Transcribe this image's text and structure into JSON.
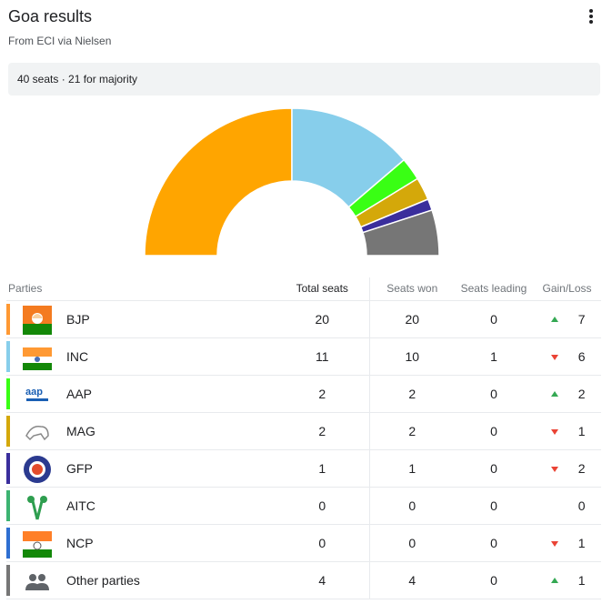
{
  "header": {
    "title": "Goa results",
    "subtitle": "From ECI via Nielsen"
  },
  "summary": "40 seats · 21 for majority",
  "chart_data": {
    "type": "pie",
    "categories": [
      "BJP",
      "INC",
      "AAP",
      "MAG",
      "GFP",
      "AITC",
      "NCP",
      "Other parties"
    ],
    "values": [
      20,
      11,
      2,
      2,
      1,
      0,
      0,
      4
    ],
    "total": 40,
    "colors": [
      "#ffa500",
      "#87ceeb",
      "#39ff14",
      "#d4a80a",
      "#3a2e9c",
      "#3cb371",
      "#2e6fd1",
      "#767676"
    ]
  },
  "table": {
    "headers": {
      "parties": "Parties",
      "total": "Total seats",
      "won": "Seats won",
      "leading": "Seats leading",
      "gainloss": "Gain/Loss"
    },
    "rows": [
      {
        "party": "BJP",
        "total": "20",
        "won": "20",
        "leading": "0",
        "change": "7",
        "direction": "up",
        "color": "#ff9933",
        "icon": "bjp-logo-icon"
      },
      {
        "party": "INC",
        "total": "11",
        "won": "10",
        "leading": "1",
        "change": "6",
        "direction": "down",
        "color": "#87ceeb",
        "icon": "inc-logo-icon"
      },
      {
        "party": "AAP",
        "total": "2",
        "won": "2",
        "leading": "0",
        "change": "2",
        "direction": "up",
        "color": "#39ff14",
        "icon": "aap-logo-icon"
      },
      {
        "party": "MAG",
        "total": "2",
        "won": "2",
        "leading": "0",
        "change": "1",
        "direction": "down",
        "color": "#d4a80a",
        "icon": "mag-logo-icon"
      },
      {
        "party": "GFP",
        "total": "1",
        "won": "1",
        "leading": "0",
        "change": "2",
        "direction": "down",
        "color": "#3a2e9c",
        "icon": "gfp-logo-icon"
      },
      {
        "party": "AITC",
        "total": "0",
        "won": "0",
        "leading": "0",
        "change": "0",
        "direction": "none",
        "color": "#3cb371",
        "icon": "aitc-logo-icon"
      },
      {
        "party": "NCP",
        "total": "0",
        "won": "0",
        "leading": "0",
        "change": "1",
        "direction": "down",
        "color": "#2e6fd1",
        "icon": "ncp-logo-icon"
      },
      {
        "party": "Other parties",
        "total": "4",
        "won": "4",
        "leading": "0",
        "change": "1",
        "direction": "up",
        "color": "#767676",
        "icon": "people-icon"
      }
    ]
  }
}
